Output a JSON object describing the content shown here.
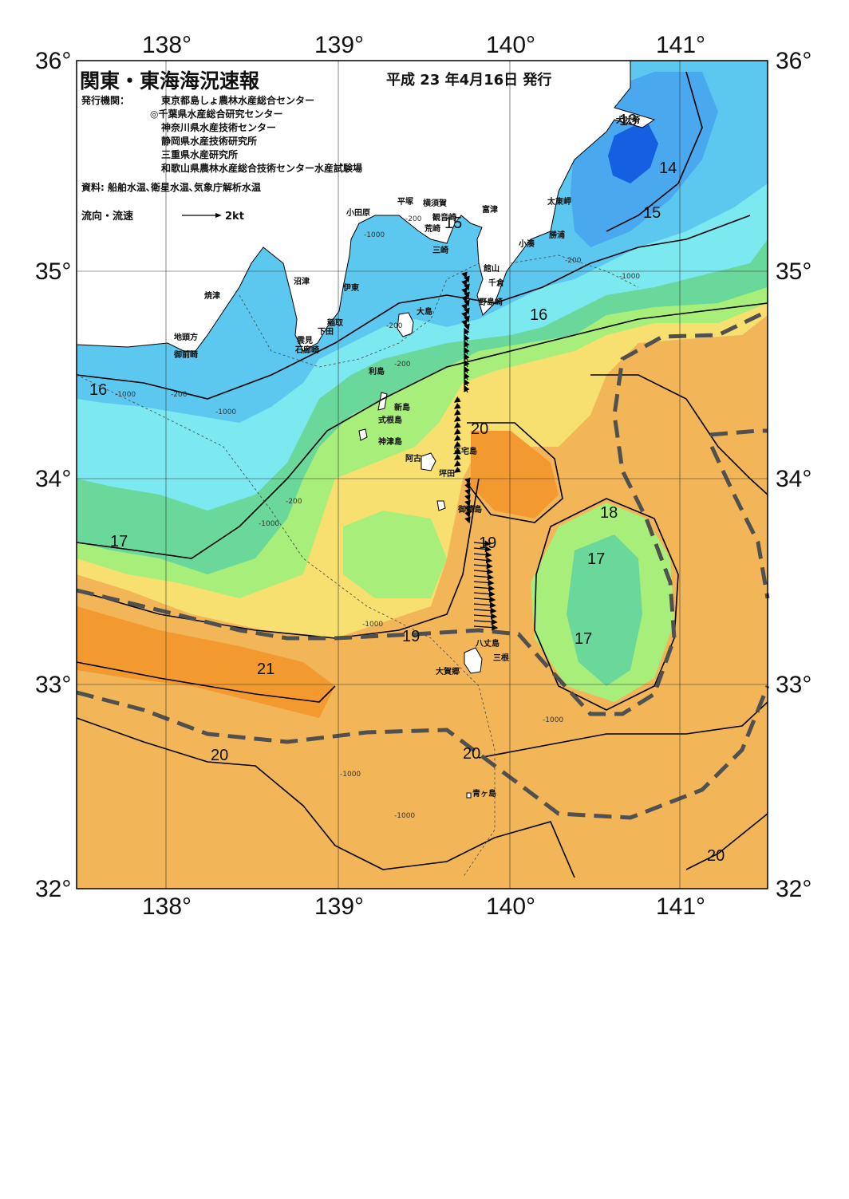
{
  "title": "関東・東海海況速報",
  "issue_date": "平成 23 年4月16日 発行",
  "publisher_label": "発行機関：",
  "publishers": [
    "東京都島しょ農林水産総合センター",
    "◎千葉県水産総合研究センター",
    "神奈川県水産技術センター",
    "静岡県水産技術研究所",
    "三重県水産研究所",
    "和歌山県農林水産総合技術センター水産試験場"
  ],
  "source_note": "資料: 船舶水温､衛星水温､気象庁解析水温",
  "legend": {
    "label": "流向・流速",
    "scale_label": "2kt"
  },
  "axes": {
    "lon_labels": [
      "138°",
      "139°",
      "140°",
      "141°"
    ],
    "lat_labels": [
      "36°",
      "35°",
      "34°",
      "33°",
      "32°"
    ]
  },
  "place_names": {
    "inubosaki": "犬吠埼",
    "taitozaki": "太東岬",
    "katsuura": "勝浦",
    "kominato": "小湊",
    "futtsu": "富津",
    "yokosuka": "横須賀",
    "kannonzaki": "観音崎",
    "arasaki": "荒崎",
    "misaki": "三崎",
    "hiratsuka": "平塚",
    "odawara": "小田原",
    "tateyama": "館山",
    "chikura": "千倉",
    "nojimazaki": "野島崎",
    "numazu": "沼津",
    "ito": "伊東",
    "yaizu": "焼津",
    "inatori": "稲取",
    "shimoda": "下田",
    "mera": "雲見",
    "irozaki": "石廊崎",
    "jitogata": "地頭方",
    "omaezaki": "御前崎",
    "oshima": "大島",
    "toshima": "利島",
    "niijima": "新島",
    "shikinejima": "式根島",
    "kozushima": "神津島",
    "ako": "阿古",
    "miyakejima": "三宅島",
    "tsubota": "坪田",
    "mikurajima": "御蔵島",
    "hachijojima": "八丈島",
    "mitsune": "三根",
    "okago": "大賀郷",
    "aogashima": "青ヶ島"
  },
  "isotherm_labels": {
    "t13": "13",
    "t14": "14",
    "t15a": "15",
    "t15b": "15",
    "t16a": "16",
    "t16b": "16",
    "t17a": "17",
    "t17b": "17",
    "t17c": "17",
    "t18": "18",
    "t19a": "19",
    "t19b": "19",
    "t20a": "20",
    "t20b": "20",
    "t20c": "20",
    "t20d": "20",
    "t21": "21"
  },
  "depth_labels": {
    "d200": "-200",
    "d1000": "-1000"
  },
  "colors": {
    "t13": "#1560e0",
    "t14": "#4aa8ee",
    "t15": "#5cc8f0",
    "t16": "#7ce8f0",
    "t17": "#6ad89a",
    "t18": "#a8ee7a",
    "t19": "#f8e070",
    "t20": "#f2b658",
    "t21": "#f29a30",
    "t22": "#ee8020",
    "land": "#ffffff",
    "kuroshio_axis": "#505050",
    "contour": "#000000"
  }
}
